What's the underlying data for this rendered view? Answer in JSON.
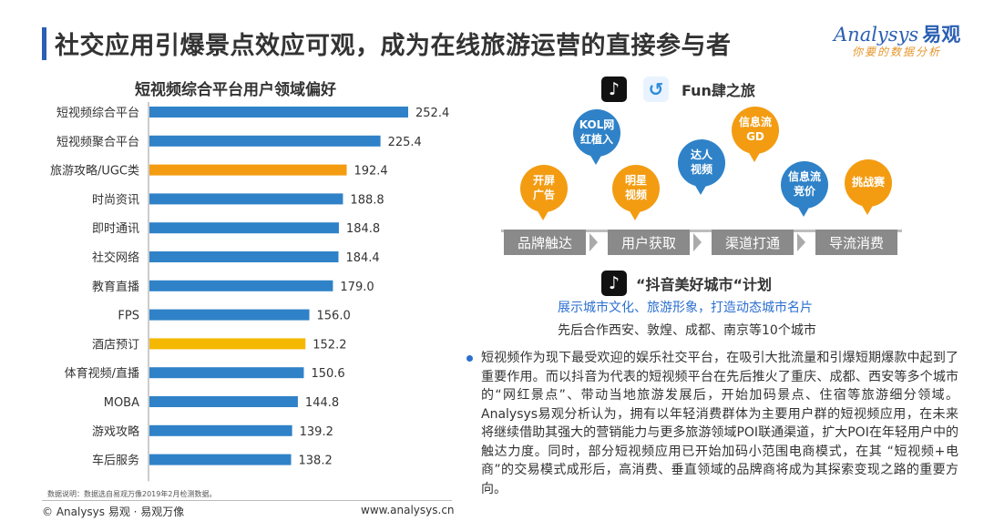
{
  "header": {
    "title": "社交应用引爆景点效应可观，成为在线旅游运营的直接参与者",
    "logo_en": "Analysys",
    "logo_cn": "易观",
    "logo_slogan": "你要的数据分析"
  },
  "chart_data": {
    "type": "bar",
    "orientation": "horizontal",
    "title": "短视频综合平台用户领域偏好",
    "xlabel": "",
    "ylabel": "",
    "xlim": [
      0,
      260
    ],
    "grid": false,
    "categories": [
      "短视频综合平台",
      "短视频聚合平台",
      "旅游攻略/UGC类",
      "时尚资讯",
      "即时通讯",
      "社交网络",
      "教育直播",
      "FPS",
      "酒店预订",
      "体育视频/直播",
      "MOBA",
      "游戏攻略",
      "车后服务"
    ],
    "values": [
      252.4,
      225.4,
      192.4,
      188.8,
      184.8,
      184.4,
      179.0,
      156.0,
      152.2,
      150.6,
      144.8,
      139.2,
      138.2
    ],
    "value_labels": [
      "252.4",
      "225.4",
      "192.4",
      "188.8",
      "184.8",
      "184.4",
      "179.0",
      "156.0",
      "152.2",
      "150.6",
      "144.8",
      "139.2",
      "138.2"
    ],
    "colors": [
      "#2f82c8",
      "#2f82c8",
      "#f39c12",
      "#2f82c8",
      "#2f82c8",
      "#2f82c8",
      "#2f82c8",
      "#2f82c8",
      "#f5b800",
      "#2f82c8",
      "#2f82c8",
      "#2f82c8",
      "#2f82c8"
    ]
  },
  "chart_note": "数据说明：数据选自易观万像2019年2月检测数据。",
  "footer": {
    "left": "© Analysys 易观 · 易观万像",
    "right": "www.analysys.cn"
  },
  "apps": {
    "tiktok_icon": "tiktok-icon",
    "fun_icon": "fun-icon",
    "fun_label": "Fun肆之旅"
  },
  "bubbles": [
    {
      "text": "开屏\n广告",
      "color": "orange"
    },
    {
      "text": "KOL网\n红植入",
      "color": "blue"
    },
    {
      "text": "明星\n视频",
      "color": "orange"
    },
    {
      "text": "达人\n视频",
      "color": "blue"
    },
    {
      "text": "信息流\nGD",
      "color": "orange"
    },
    {
      "text": "信息流\n竞价",
      "color": "blue"
    },
    {
      "text": "挑战赛",
      "color": "orange"
    }
  ],
  "stages": [
    "品牌触达",
    "用户获取",
    "渠道打通",
    "导流消费"
  ],
  "plan": {
    "title": "“抖音美好城市“计划",
    "subtitle1": "展示城市文化、旅游形象，打造动态城市名片",
    "subtitle2": "先后合作西安、敦煌、成都、南京等10个城市"
  },
  "paragraph": "短视频作为现下最受欢迎的娱乐社交平台，在吸引大批流量和引爆短期爆款中起到了重要作用。而以抖音为代表的短视频平台在先后推火了重庆、成都、西安等多个城市的“网红景点”、带动当地旅游发展后，开始加码景点、住宿等旅游细分领域。Analysys易观分析认为，拥有以年轻消费群体为主要用户群的短视频应用，在未来将继续借助其强大的营销能力与更多旅游领域POI联通渠道，扩大POI在年轻用户中的触达力度。同时，部分短视频应用已开始加码小范围电商模式，在其 “短视频+电商”的交易模式成形后，高消费、垂直领域的品牌商将成为其探索变现之路的重要方向。"
}
